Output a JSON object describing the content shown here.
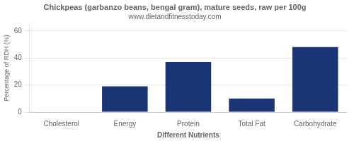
{
  "chart_data": {
    "type": "bar",
    "title": "Chickpeas (garbanzo beans, bengal gram), mature seeds, raw per 100g",
    "subtitle": "www.dietandfitnesstoday.com",
    "xlabel": "Different Nutrients",
    "ylabel": "Percentage of RDH (%)",
    "categories": [
      "Cholesterol",
      "Energy",
      "Protein",
      "Total Fat",
      "Carbohydrate"
    ],
    "values": [
      0,
      19,
      37,
      10,
      48
    ],
    "color": "#1a3575",
    "ylim": [
      0,
      65
    ],
    "yticks": [
      0,
      20,
      40,
      60
    ],
    "grid": true
  }
}
